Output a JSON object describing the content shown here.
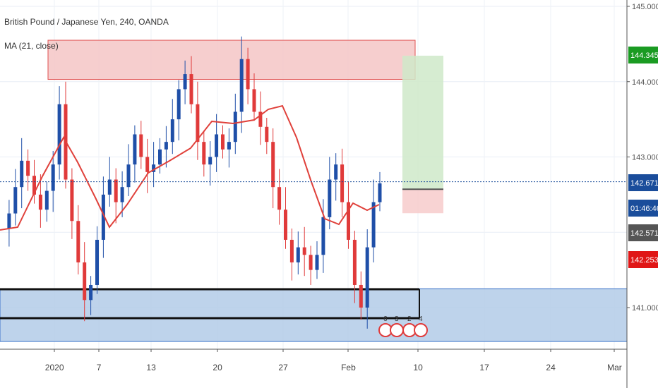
{
  "header": {
    "symbol_title": "British Pound / Japanese Yen, 240, OANDA",
    "indicator_label": "MA (21, close)"
  },
  "chart_data": {
    "type": "line",
    "title": "British Pound / Japanese Yen, 240, OANDA",
    "ylim": [
      140.4,
      145.2
    ],
    "y_ticks": [
      "145.000",
      "144.000",
      "143.000",
      "141.000"
    ],
    "x_ticks": [
      "2020",
      "7",
      "13",
      "20",
      "27",
      "Feb",
      "10",
      "17",
      "24",
      "Mar"
    ],
    "price_labels": [
      {
        "text": "144.345",
        "value": 144.345,
        "color": "#1a9b22"
      },
      {
        "text": "142.671",
        "value": 142.671,
        "color": "#1a4d9b"
      },
      {
        "text": "01:46:46",
        "value": 142.58,
        "color": "#1a4d9b"
      },
      {
        "text": "142.571",
        "value": 142.571,
        "color": "#555555"
      },
      {
        "text": "142.253",
        "value": 142.253,
        "color": "#e01616"
      }
    ],
    "current_price": 142.671,
    "series": [
      {
        "name": "MA (21, close)",
        "color": "#e0413b",
        "x": [
          0,
          6,
          10,
          14,
          18,
          21,
          24,
          27,
          31,
          35,
          41,
          45
        ],
        "values": [
          142.05,
          142.3,
          142.65,
          142.4,
          142.0,
          142.5,
          143.2,
          143.3,
          142.5,
          141.95,
          142.35,
          142.3
        ]
      }
    ],
    "boxes": [
      {
        "kind": "resistance-zone",
        "y_range": [
          144.03,
          144.55
        ],
        "x_range": [
          0.5,
          37.5
        ],
        "color": "#f4c6c6"
      },
      {
        "kind": "target-zone",
        "y_range": [
          142.571,
          144.345
        ],
        "x_range": [
          36.2,
          40.3
        ],
        "color": "#cfe9c9"
      },
      {
        "kind": "stop-zone",
        "y_range": [
          142.253,
          142.571
        ],
        "x_range": [
          36.2,
          40.3
        ],
        "color": "#f7cbcb"
      },
      {
        "kind": "support-zone",
        "y_range": [
          140.55,
          141.25
        ],
        "x_range": [
          -5,
          57
        ],
        "color": "#b3cbe8"
      }
    ],
    "event_markers": [
      "6",
      "3",
      "2",
      "4"
    ]
  }
}
